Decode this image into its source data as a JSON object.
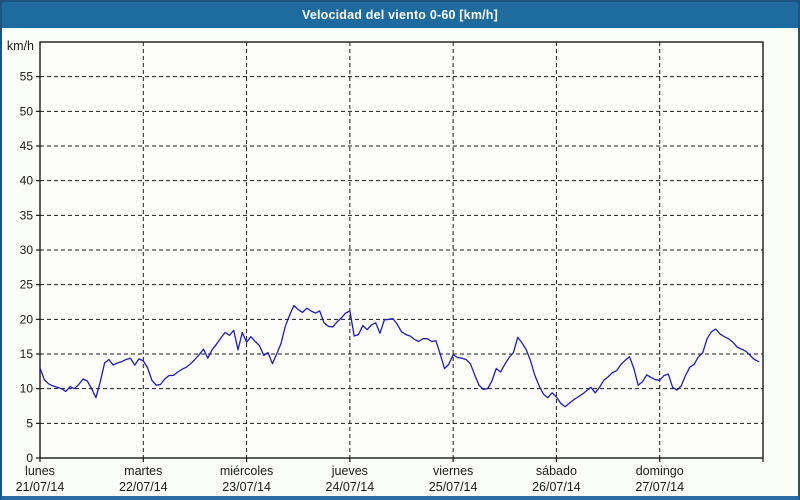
{
  "window": {
    "title": "Velocidad del viento 0-60 [km/h]"
  },
  "colors": {
    "title_bar": "#1d6b9f",
    "title_text": "#ffffff",
    "outer_border": "#1f5380",
    "bottom_border": "#2d6ca3",
    "panel_bg": "#fbfdf8",
    "plot_bg": "#fdfefb",
    "plot_border": "#1a1a1a",
    "grid": "#1a1a1a",
    "line": "#1e1eb4",
    "label_text": "#1a1a1a"
  },
  "chart_data": {
    "type": "line",
    "title": "Velocidad del viento 0-60 [km/h]",
    "ylabel": "km/h",
    "ylim": [
      0,
      60
    ],
    "y_ticks": [
      0,
      5,
      10,
      15,
      20,
      25,
      30,
      35,
      40,
      45,
      50,
      55
    ],
    "grid": "dashed, horizontal at every 5 km/h and vertical at every day boundary",
    "legend_position": "none",
    "x_axis": {
      "unit": "hours",
      "points_per_day": 24,
      "day_labels": [
        {
          "day": "lunes",
          "date": "21/07/14"
        },
        {
          "day": "martes",
          "date": "22/07/14"
        },
        {
          "day": "miércoles",
          "date": "23/07/14"
        },
        {
          "day": "jueves",
          "date": "24/07/14"
        },
        {
          "day": "viernes",
          "date": "25/07/14"
        },
        {
          "day": "sábado",
          "date": "26/07/14"
        },
        {
          "day": "domingo",
          "date": "27/07/14"
        }
      ]
    },
    "series": [
      {
        "name": "Velocidad del viento [km/h]",
        "values": [
          13.0,
          11.3,
          10.7,
          10.4,
          10.2,
          10.0,
          9.6,
          10.3,
          10.0,
          10.6,
          11.4,
          11.1,
          10.0,
          8.7,
          11.0,
          13.7,
          14.2,
          13.4,
          13.7,
          13.9,
          14.2,
          14.4,
          13.4,
          14.3,
          14.0,
          13.0,
          11.2,
          10.5,
          10.6,
          11.4,
          11.9,
          11.9,
          12.4,
          12.8,
          13.1,
          13.6,
          14.2,
          14.9,
          15.7,
          14.4,
          15.6,
          16.4,
          17.3,
          18.1,
          17.7,
          18.4,
          15.6,
          18.1,
          16.7,
          17.5,
          16.8,
          16.2,
          14.8,
          15.2,
          13.6,
          15.0,
          16.5,
          19.0,
          20.6,
          22.0,
          21.4,
          21.0,
          21.6,
          21.2,
          20.9,
          21.2,
          19.5,
          19.0,
          18.9,
          19.6,
          20.2,
          20.9,
          21.2,
          17.6,
          17.8,
          19.1,
          18.5,
          19.2,
          19.5,
          18.0,
          19.9,
          20.0,
          20.1,
          19.3,
          18.2,
          17.8,
          17.6,
          17.1,
          16.8,
          17.2,
          17.2,
          16.8,
          16.9,
          15.0,
          12.9,
          13.5,
          14.9,
          14.5,
          14.4,
          14.2,
          13.6,
          12.0,
          10.5,
          9.9,
          10.0,
          11.1,
          12.9,
          12.4,
          13.5,
          14.5,
          15.2,
          17.4,
          16.6,
          15.6,
          14.0,
          11.9,
          10.4,
          9.2,
          8.7,
          9.4,
          8.8,
          7.9,
          7.4,
          7.9,
          8.4,
          8.8,
          9.2,
          9.7,
          10.2,
          9.4,
          10.2,
          11.2,
          11.7,
          12.3,
          12.6,
          13.5,
          14.1,
          14.6,
          12.9,
          10.5,
          11.0,
          12.0,
          11.6,
          11.3,
          11.2,
          11.9,
          12.1,
          10.2,
          9.8,
          10.4,
          11.9,
          13.1,
          13.5,
          14.6,
          15.2,
          17.2,
          18.2,
          18.6,
          17.9,
          17.5,
          17.2,
          16.7,
          16.0,
          15.7,
          15.4,
          14.8,
          14.2,
          13.9
        ]
      }
    ]
  }
}
